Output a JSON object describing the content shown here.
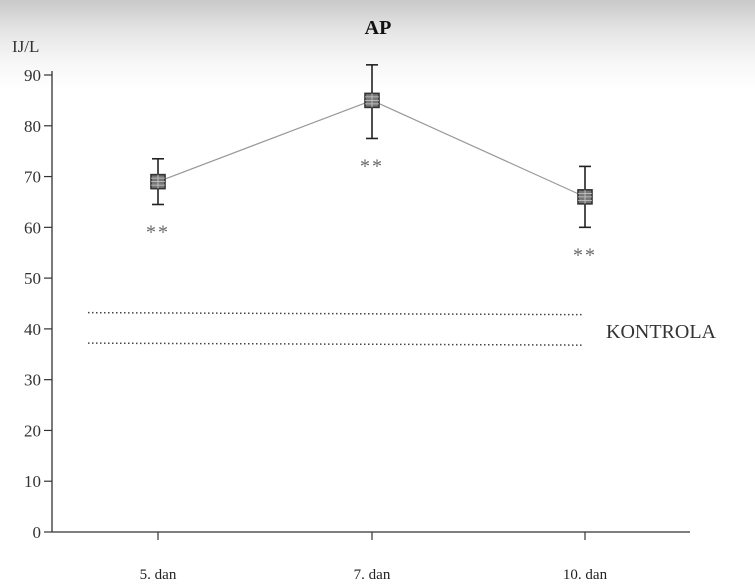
{
  "chart_data": {
    "type": "line",
    "title": "AP",
    "ylabel": "IJ/L",
    "xlabel": "",
    "categories": [
      "5. dan",
      "7. dan",
      "10. dan"
    ],
    "ylim": [
      0,
      90
    ],
    "yticks": [
      0,
      10,
      20,
      30,
      40,
      50,
      60,
      70,
      80,
      90
    ],
    "series": [
      {
        "values": [
          69,
          85,
          66
        ],
        "error_low": [
          64.5,
          77.5,
          60
        ],
        "error_high": [
          73.5,
          92,
          72
        ],
        "significance": [
          "**",
          "**",
          "**"
        ]
      }
    ],
    "reference_band": {
      "label": "KONTROLA",
      "lower": 37,
      "upper": 43,
      "style": "dotted"
    },
    "grid": false,
    "line_color": "#999999",
    "marker_color": "#333333"
  }
}
